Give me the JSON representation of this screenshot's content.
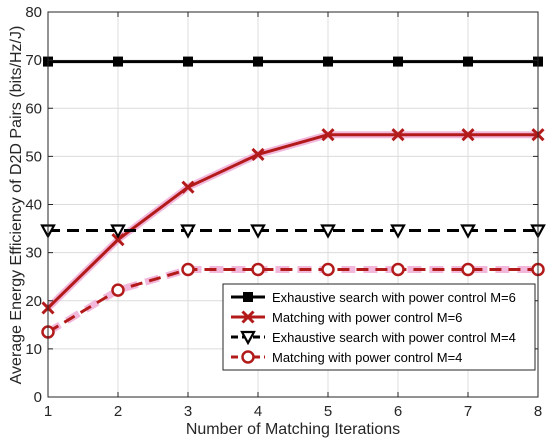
{
  "chart_data": {
    "type": "line",
    "title": "",
    "xlabel": "Number of Matching Iterations",
    "ylabel": "Average Energy Efficiency of D2D Pairs (bits/Hz/J)",
    "x": [
      1,
      2,
      3,
      4,
      5,
      6,
      7,
      8
    ],
    "xlim": [
      1,
      8
    ],
    "ylim": [
      0,
      80
    ],
    "xticks": [
      "1",
      "2",
      "3",
      "4",
      "5",
      "6",
      "7",
      "8"
    ],
    "yticks": [
      "0",
      "10",
      "20",
      "30",
      "40",
      "50",
      "60",
      "70",
      "80"
    ],
    "grid": true,
    "legend_position": "bottom-right",
    "series": [
      {
        "name": "Exhaustive search with power control M=6",
        "values": [
          69.7,
          69.7,
          69.7,
          69.7,
          69.7,
          69.7,
          69.7,
          69.7
        ],
        "color": "#000000",
        "marker": "square",
        "dash": "solid"
      },
      {
        "name": "Matching with power control M=6",
        "values": [
          18.5,
          32.7,
          43.6,
          50.4,
          54.5,
          54.5,
          54.5,
          54.5
        ],
        "color": "#b31b1b",
        "marker": "x",
        "dash": "solid"
      },
      {
        "name": "Exhaustive search with power control M=4",
        "values": [
          34.6,
          34.6,
          34.6,
          34.6,
          34.6,
          34.6,
          34.6,
          34.6
        ],
        "color": "#000000",
        "marker": "triangle-down",
        "dash": "dashed"
      },
      {
        "name": "Matching with power control M=4",
        "values": [
          13.5,
          22.2,
          26.5,
          26.5,
          26.5,
          26.5,
          26.5,
          26.5
        ],
        "color": "#b31b1b",
        "marker": "circle",
        "dash": "dashed"
      }
    ]
  }
}
